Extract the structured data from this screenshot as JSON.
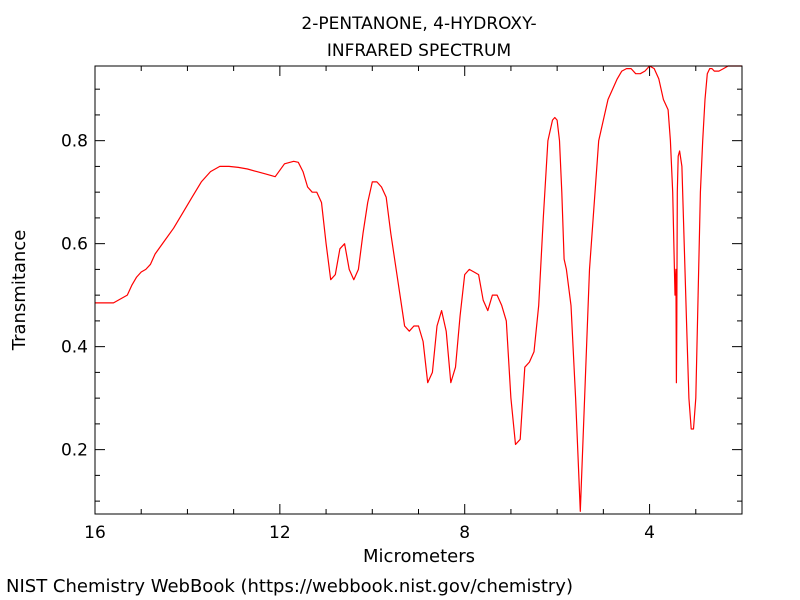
{
  "chart_data": {
    "type": "line",
    "title": "2-PENTANONE, 4-HYDROXY-",
    "subtitle": "INFRARED SPECTRUM",
    "xlabel": "Micrometers",
    "ylabel": "Transmitance",
    "xlim": [
      16,
      2
    ],
    "ylim": [
      0.075,
      0.945
    ],
    "x_ticks": [
      16,
      12,
      8,
      4
    ],
    "y_ticks": [
      0.2,
      0.4,
      0.6,
      0.8
    ],
    "grid": false,
    "line_color": "#ff0000",
    "series": [
      {
        "x": [
          16.0,
          15.6,
          15.3,
          15.2,
          15.1,
          15.0,
          14.9,
          14.8,
          14.7,
          14.5,
          14.3,
          14.1,
          13.9,
          13.7,
          13.5,
          13.3,
          13.1,
          12.9,
          12.7,
          12.5,
          12.3,
          12.1,
          11.9,
          11.7,
          11.6,
          11.5,
          11.4,
          11.3,
          11.2,
          11.1,
          11.0,
          10.9,
          10.8,
          10.7,
          10.6,
          10.5,
          10.4,
          10.3,
          10.2,
          10.1,
          10.0,
          9.9,
          9.8,
          9.7,
          9.6,
          9.5,
          9.4,
          9.3,
          9.2,
          9.1,
          9.0,
          8.9,
          8.8,
          8.7,
          8.6,
          8.5,
          8.4,
          8.3,
          8.2,
          8.1,
          8.0,
          7.9,
          7.8,
          7.7,
          7.6,
          7.5,
          7.4,
          7.3,
          7.25,
          7.2,
          7.1,
          7.0,
          6.9,
          6.8,
          6.7,
          6.6,
          6.5,
          6.4,
          6.3,
          6.2,
          6.1,
          6.05,
          6.0,
          5.95,
          5.9,
          5.85,
          5.8,
          5.7,
          5.6,
          5.5,
          5.3,
          5.1,
          4.9,
          4.7,
          4.6,
          4.5,
          4.4,
          4.3,
          4.2,
          4.1,
          4.0,
          3.9,
          3.8,
          3.7,
          3.6,
          3.55,
          3.5,
          3.45,
          3.43,
          3.42,
          3.41,
          3.4,
          3.38,
          3.35,
          3.3,
          3.25,
          3.2,
          3.15,
          3.1,
          3.05,
          3.0,
          2.95,
          2.9,
          2.85,
          2.8,
          2.75,
          2.7,
          2.65,
          2.6,
          2.5,
          2.4,
          2.3,
          2.2,
          2.0
        ],
        "values": [
          0.485,
          0.485,
          0.5,
          0.52,
          0.535,
          0.545,
          0.55,
          0.56,
          0.58,
          0.605,
          0.63,
          0.66,
          0.69,
          0.72,
          0.74,
          0.75,
          0.75,
          0.748,
          0.745,
          0.74,
          0.735,
          0.73,
          0.755,
          0.76,
          0.758,
          0.74,
          0.71,
          0.7,
          0.7,
          0.68,
          0.6,
          0.53,
          0.54,
          0.59,
          0.6,
          0.55,
          0.53,
          0.55,
          0.62,
          0.68,
          0.72,
          0.72,
          0.71,
          0.69,
          0.62,
          0.56,
          0.5,
          0.44,
          0.43,
          0.44,
          0.44,
          0.41,
          0.33,
          0.35,
          0.44,
          0.47,
          0.43,
          0.33,
          0.36,
          0.46,
          0.54,
          0.55,
          0.545,
          0.54,
          0.49,
          0.47,
          0.5,
          0.5,
          0.49,
          0.48,
          0.45,
          0.3,
          0.21,
          0.22,
          0.36,
          0.37,
          0.39,
          0.48,
          0.65,
          0.8,
          0.84,
          0.845,
          0.84,
          0.8,
          0.7,
          0.57,
          0.55,
          0.48,
          0.3,
          0.08,
          0.55,
          0.8,
          0.88,
          0.92,
          0.935,
          0.94,
          0.94,
          0.93,
          0.93,
          0.935,
          0.945,
          0.94,
          0.92,
          0.88,
          0.86,
          0.8,
          0.7,
          0.5,
          0.55,
          0.33,
          0.45,
          0.7,
          0.77,
          0.78,
          0.75,
          0.6,
          0.45,
          0.3,
          0.24,
          0.24,
          0.3,
          0.5,
          0.7,
          0.8,
          0.88,
          0.93,
          0.94,
          0.94,
          0.935,
          0.935,
          0.94,
          0.945,
          0.945,
          0.945
        ]
      }
    ]
  },
  "footer": {
    "credit": "NIST Chemistry WebBook (https://webbook.nist.gov/chemistry)"
  }
}
